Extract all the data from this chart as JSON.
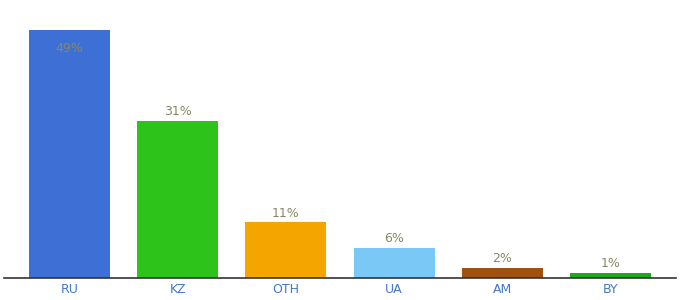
{
  "categories": [
    "RU",
    "KZ",
    "OTH",
    "UA",
    "AM",
    "BY"
  ],
  "values": [
    49,
    31,
    11,
    6,
    2,
    1
  ],
  "labels": [
    "49%",
    "31%",
    "11%",
    "6%",
    "2%",
    "1%"
  ],
  "bar_colors": [
    "#3d6fd4",
    "#2dc31a",
    "#f5a500",
    "#7ac8f5",
    "#a05010",
    "#1aaa1a"
  ],
  "background_color": "#ffffff",
  "label_color": "#888866",
  "label_fontsize": 9,
  "tick_fontsize": 9,
  "tick_color": "#4477cc",
  "ylim": [
    0,
    54
  ],
  "bar_width": 0.75
}
